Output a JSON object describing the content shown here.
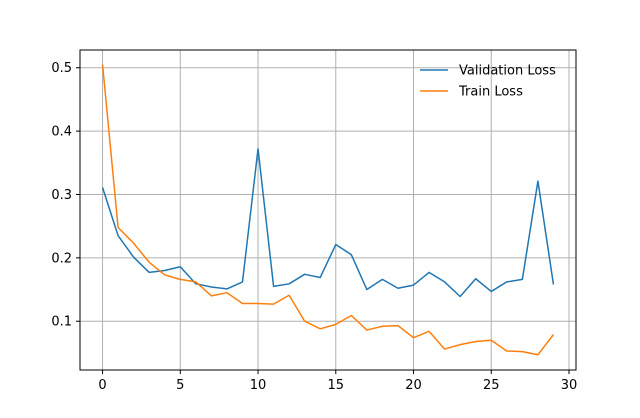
{
  "chart_data": {
    "type": "line",
    "title": "",
    "xlabel": "",
    "ylabel": "",
    "xlim": [
      -1.45,
      30.45
    ],
    "ylim": [
      0.023,
      0.528
    ],
    "grid": true,
    "legend_position": "top-right",
    "x_ticks": [
      0,
      5,
      10,
      15,
      20,
      25,
      30
    ],
    "y_ticks": [
      0.1,
      0.2,
      0.3,
      0.4,
      0.5
    ],
    "x": [
      0,
      1,
      2,
      3,
      4,
      5,
      6,
      7,
      8,
      9,
      10,
      11,
      12,
      13,
      14,
      15,
      16,
      17,
      18,
      19,
      20,
      21,
      22,
      23,
      24,
      25,
      26,
      27,
      28,
      29
    ],
    "series": [
      {
        "name": "Validation Loss",
        "color": "#1f77b4",
        "values": [
          0.311,
          0.235,
          0.201,
          0.177,
          0.18,
          0.186,
          0.159,
          0.154,
          0.151,
          0.162,
          0.372,
          0.155,
          0.159,
          0.174,
          0.169,
          0.221,
          0.205,
          0.15,
          0.166,
          0.152,
          0.157,
          0.177,
          0.162,
          0.139,
          0.167,
          0.147,
          0.162,
          0.166,
          0.321,
          0.158
        ]
      },
      {
        "name": "Train Loss",
        "color": "#ff7f0e",
        "values": [
          0.505,
          0.248,
          0.223,
          0.193,
          0.173,
          0.166,
          0.162,
          0.14,
          0.145,
          0.128,
          0.128,
          0.127,
          0.141,
          0.1,
          0.088,
          0.095,
          0.109,
          0.086,
          0.092,
          0.093,
          0.074,
          0.084,
          0.056,
          0.063,
          0.068,
          0.07,
          0.053,
          0.052,
          0.047,
          0.079
        ]
      }
    ]
  }
}
